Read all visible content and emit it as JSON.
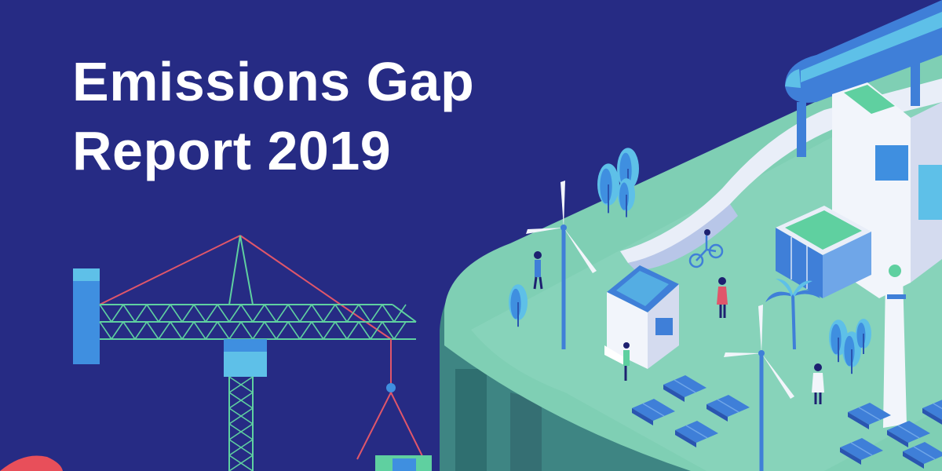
{
  "title": {
    "line1": "Emissions Gap",
    "line2": "Report 2019"
  },
  "colors": {
    "background": "#262b84",
    "ground": "#7fcfb4",
    "ground_light": "#a9e3cd",
    "cliff": "#4a8f8a",
    "crane_green": "#5fd0a0",
    "crane_red": "#e0566a",
    "blue": "#3f7fd8",
    "light_blue": "#5ec0e8",
    "white": "#f2f5fb"
  },
  "icons": [
    "tower-crane-icon",
    "wind-turbine-icon",
    "solar-panel-icon",
    "monorail-train-icon",
    "house-icon",
    "tree-icon",
    "bicycle-icon",
    "person-icon",
    "palm-tree-icon",
    "chimney-icon"
  ]
}
